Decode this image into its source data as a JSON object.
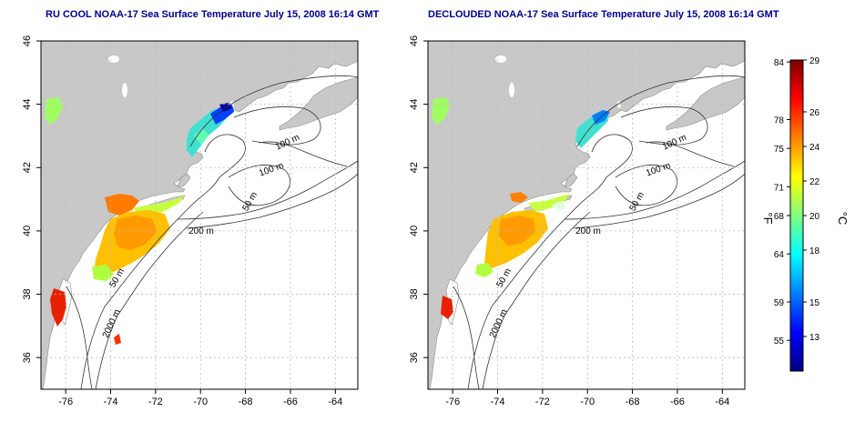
{
  "maps": [
    {
      "title": "RU COOL NOAA-17 Sea Surface Temperature July 15, 2008 16:14 GMT",
      "contour_labels": [
        "100 m",
        "100 m",
        "50 m",
        "200 m",
        "50 m",
        "2000 m"
      ]
    },
    {
      "title": "DECLOUDED NOAA-17 Sea Surface Temperature July 15, 2008 16:14 GMT",
      "contour_labels": [
        "100 m",
        "100 m",
        "50 m",
        "200 m",
        "50 m",
        "2000 m"
      ]
    }
  ],
  "axes": {
    "x_ticks": [
      "-76",
      "-74",
      "-72",
      "-70",
      "-68",
      "-66",
      "-64"
    ],
    "x_values": [
      -76,
      -74,
      -72,
      -70,
      -68,
      -66,
      -64
    ],
    "y_ticks": [
      "36",
      "38",
      "40",
      "42",
      "44",
      "46"
    ],
    "y_values": [
      36,
      38,
      40,
      42,
      44,
      46
    ],
    "lon_range": [
      -77.1,
      -63
    ],
    "lat_range": [
      35,
      46
    ]
  },
  "colorbar": {
    "f_label": "°F",
    "c_label": "°C",
    "f_ticks": [
      "84",
      "78",
      "75",
      "71",
      "68",
      "64",
      "59",
      "55"
    ],
    "f_values": [
      84,
      78,
      75,
      71,
      68,
      64,
      59,
      55
    ],
    "c_ticks": [
      "29",
      "26",
      "24",
      "22",
      "20",
      "18",
      "15",
      "13"
    ],
    "c_values": [
      29,
      26,
      24,
      22,
      20,
      18,
      15,
      13
    ],
    "c_range": [
      11,
      29
    ],
    "colors": [
      "#00007f",
      "#0000ff",
      "#0080ff",
      "#00ffff",
      "#80ff80",
      "#ffff00",
      "#ff8000",
      "#ff0000",
      "#7f0000"
    ]
  },
  "colors": {
    "land": "#c8c8c8",
    "ocean": "#ffffff",
    "title": "#00008b",
    "grid": "#bbbbbb"
  }
}
